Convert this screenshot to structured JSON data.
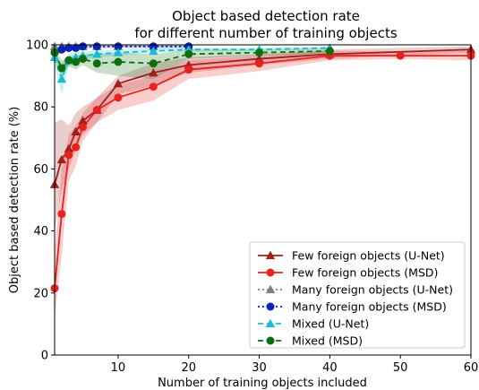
{
  "chart_data": {
    "type": "line",
    "title": "Object based detection rate",
    "subtitle": "for different number of training objects",
    "xlabel": "Number of training objects included",
    "ylabel": "Object based detection rate (%)",
    "xlim": [
      1,
      60
    ],
    "ylim": [
      0,
      100
    ],
    "xticks": [
      10,
      20,
      30,
      40,
      50,
      60
    ],
    "yticks": [
      0,
      20,
      40,
      60,
      80,
      100
    ],
    "grid": false,
    "legend_position": "lower-right",
    "series": [
      {
        "name": "Few foreign objects (U-Net)",
        "color": "#a02020",
        "marker": "triangle",
        "dash": "solid",
        "x": [
          1,
          2,
          3,
          4,
          5,
          7,
          10,
          15,
          20,
          30,
          40,
          60
        ],
        "y": [
          55,
          63,
          66.5,
          72,
          75.5,
          79,
          87.5,
          91,
          93.5,
          95.5,
          97,
          98.5
        ],
        "band_low": [
          40,
          53,
          60,
          66,
          71,
          75,
          84,
          87,
          91,
          93.5,
          95.5,
          97.5
        ],
        "band_high": [
          75,
          76,
          74,
          78,
          80,
          83,
          90,
          94,
          96,
          97,
          98.5,
          99.5
        ]
      },
      {
        "name": "Few foreign objects (MSD)",
        "color": "#e8211d",
        "marker": "circle",
        "dash": "solid",
        "x": [
          1,
          2,
          3,
          4,
          5,
          7,
          10,
          15,
          20,
          30,
          40,
          50,
          60
        ],
        "y": [
          21.5,
          45.5,
          64.5,
          67,
          73.5,
          79,
          83,
          86.5,
          92,
          94,
          96.5,
          96.5,
          96.5
        ],
        "band_low": [
          12,
          32,
          56,
          61,
          69,
          75,
          79,
          82,
          89,
          91.5,
          95,
          95.5,
          95
        ],
        "band_high": [
          33,
          60,
          71,
          74,
          78,
          83,
          87,
          90,
          95,
          96.5,
          98,
          98,
          98.5
        ]
      },
      {
        "name": "Many foreign objects (U-Net)",
        "color": "#7f7f7f",
        "marker": "triangle",
        "dash": "dotted",
        "x": [
          1,
          2,
          3,
          4,
          5,
          7,
          10,
          15,
          20
        ],
        "y": [
          99.5,
          99.5,
          99.5,
          99.5,
          99.5,
          99.5,
          99.5,
          99.5,
          99.5
        ],
        "band_low": [],
        "band_high": []
      },
      {
        "name": "Many foreign objects (MSD)",
        "color": "#0a22b8",
        "marker": "circle",
        "dash": "dotted",
        "x": [
          1,
          2,
          3,
          4,
          5,
          7,
          10,
          15,
          20
        ],
        "y": [
          97.5,
          98.5,
          99,
          99,
          99.5,
          99.5,
          99.5,
          99.5,
          99.5
        ],
        "band_low": [
          96.5,
          97.5,
          98,
          98.3,
          98.8,
          99,
          99,
          99,
          99
        ],
        "band_high": [
          99,
          99.5,
          99.8,
          99.8,
          100,
          100,
          100,
          100,
          100
        ]
      },
      {
        "name": "Mixed (U-Net)",
        "color": "#17becf",
        "marker": "triangle",
        "dash": "dashed",
        "x": [
          1,
          2,
          3,
          4,
          5,
          7,
          10,
          15,
          20,
          30,
          40
        ],
        "y": [
          96,
          89,
          95,
          96,
          96.5,
          97,
          97.5,
          98,
          98.5,
          98.5,
          99
        ],
        "band_low": [
          93,
          84,
          93,
          94.5,
          95,
          96,
          96.5,
          97.5,
          98,
          98,
          98.5
        ],
        "band_high": [
          98,
          94,
          97,
          97.5,
          98,
          98,
          98.5,
          99,
          99,
          99,
          99.5
        ]
      },
      {
        "name": "Mixed (MSD)",
        "color": "#0c6e0c",
        "marker": "circle",
        "dash": "dashed",
        "x": [
          1,
          2,
          3,
          4,
          5,
          7,
          10,
          15,
          20,
          30,
          40
        ],
        "y": [
          97.5,
          92.5,
          95,
          94.5,
          95.5,
          94,
          94.5,
          94,
          97,
          97.5,
          98
        ],
        "band_low": [
          95,
          89.5,
          93,
          92,
          93.5,
          91,
          90,
          89,
          95.5,
          96.5,
          97
        ],
        "band_high": [
          99,
          95,
          96.5,
          96.5,
          97,
          97,
          97.5,
          97,
          98.5,
          98.5,
          99
        ]
      }
    ]
  }
}
